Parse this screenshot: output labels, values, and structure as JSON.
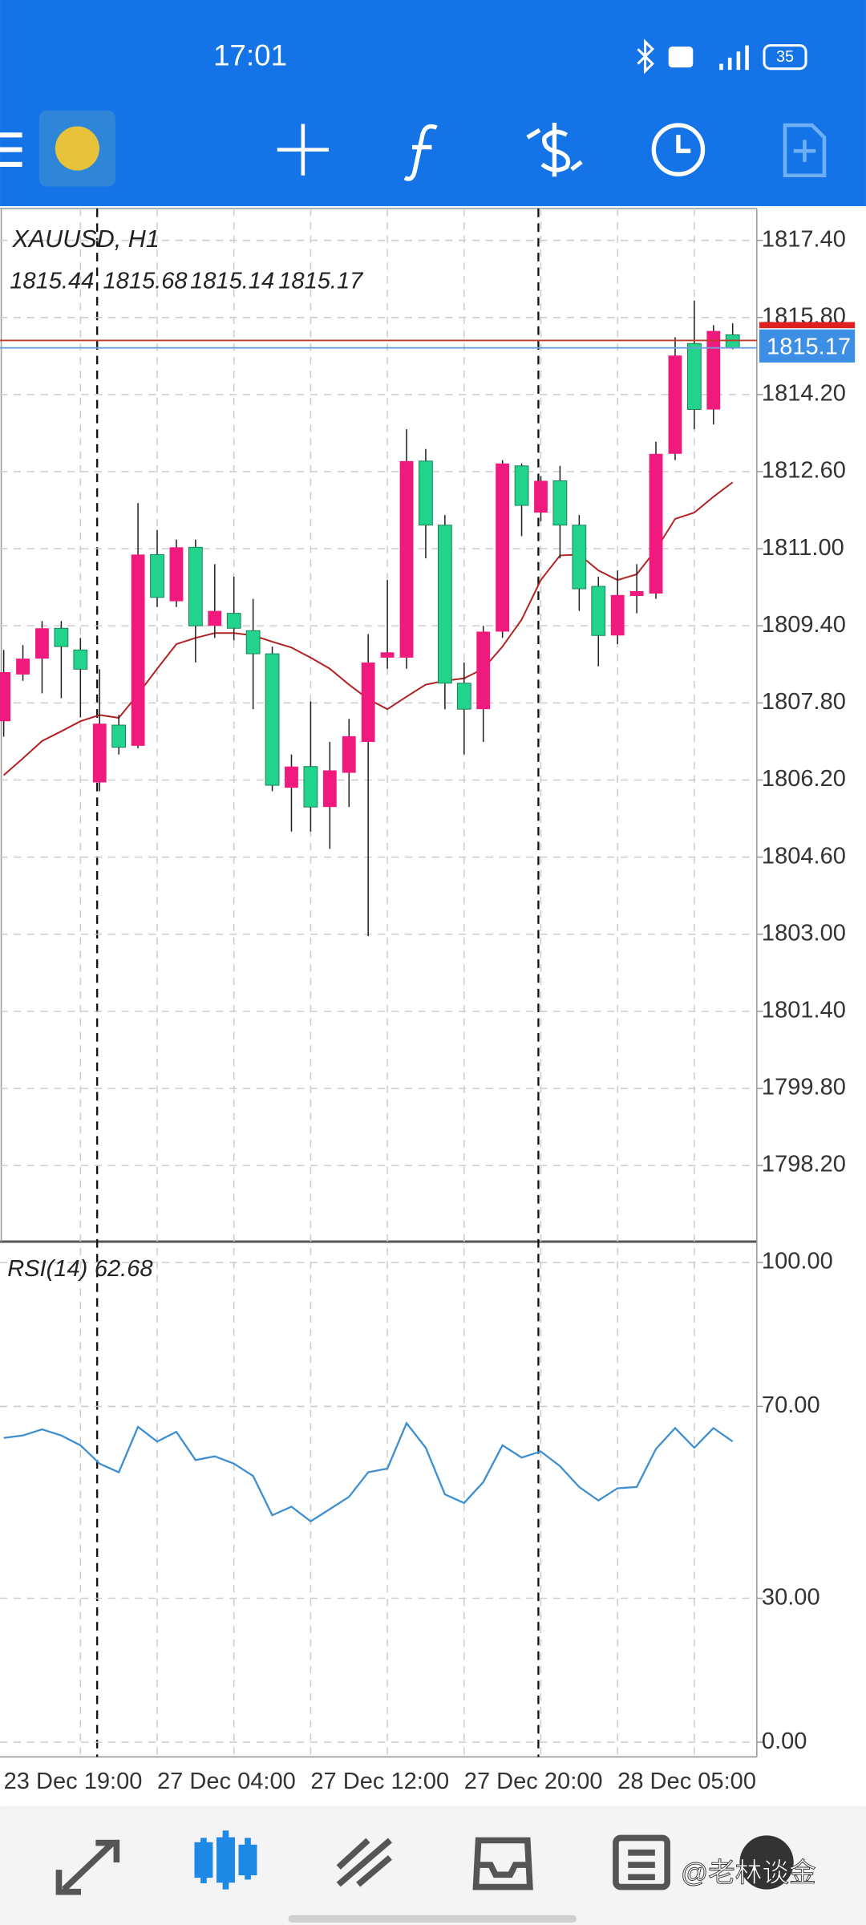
{
  "status_bar": {
    "time": "17:01",
    "battery": "35"
  },
  "chart_data": [
    {
      "type": "candlestick",
      "title": "XAUUSD, H1",
      "categories": [
        "23 Dec 19:00",
        null,
        null,
        null,
        null,
        null,
        null,
        null,
        "27 Dec 04:00",
        null,
        null,
        null,
        null,
        null,
        null,
        null,
        "27 Dec 12:00",
        null,
        null,
        null,
        null,
        null,
        null,
        null,
        "27 Dec 20:00",
        null,
        null,
        null,
        null,
        null,
        null,
        null,
        "28 Dec 05:00",
        null,
        null,
        null,
        null,
        null,
        null
      ],
      "open": [
        1807.42,
        1808.39,
        1808.72,
        1809.35,
        1808.9,
        1806.15,
        1807.34,
        1806.91,
        1810.88,
        1809.91,
        1811.03,
        1809.4,
        1809.66,
        1809.3,
        1808.82,
        1806.04,
        1806.48,
        1805.64,
        1806.35,
        1806.99,
        1808.74,
        1808.74,
        1812.82,
        1811.49,
        1808.21,
        1807.67,
        1809.28,
        1812.72,
        1811.75,
        1812.41,
        1811.49,
        1810.22,
        1809.2,
        1810.02,
        1810.07,
        1812.97,
        1815.26,
        1813.89,
        1815.44
      ],
      "high": [
        1808.9,
        1809.0,
        1809.5,
        1809.5,
        1809.15,
        1808.5,
        1807.55,
        1811.95,
        1811.39,
        1811.19,
        1811.19,
        1810.68,
        1810.42,
        1809.96,
        1808.97,
        1806.73,
        1807.83,
        1806.99,
        1807.47,
        1809.23,
        1810.35,
        1813.48,
        1813.07,
        1811.7,
        1808.64,
        1809.4,
        1812.84,
        1812.77,
        1812.51,
        1812.72,
        1811.7,
        1810.42,
        1810.55,
        1810.68,
        1813.22,
        1815.39,
        1816.15,
        1815.64,
        1815.68
      ],
      "low": [
        1807.1,
        1808.26,
        1808.0,
        1807.9,
        1807.5,
        1805.97,
        1806.73,
        1806.86,
        1809.79,
        1809.79,
        1808.64,
        1809.15,
        1809.1,
        1807.67,
        1805.97,
        1805.13,
        1805.13,
        1804.77,
        1805.64,
        1802.96,
        1808.51,
        1808.51,
        1810.8,
        1807.67,
        1806.73,
        1806.99,
        1809.15,
        1811.26,
        1811.57,
        1810.8,
        1809.71,
        1808.56,
        1809.02,
        1809.66,
        1809.96,
        1812.84,
        1813.48,
        1813.58,
        1815.14
      ],
      "close": [
        1808.44,
        1808.72,
        1809.35,
        1808.97,
        1808.5,
        1807.37,
        1806.88,
        1810.88,
        1809.99,
        1811.03,
        1809.4,
        1809.71,
        1809.35,
        1808.82,
        1806.09,
        1806.48,
        1805.64,
        1806.4,
        1807.11,
        1808.64,
        1808.85,
        1812.82,
        1811.49,
        1808.21,
        1807.67,
        1809.28,
        1812.77,
        1811.9,
        1812.41,
        1811.49,
        1810.17,
        1809.2,
        1810.04,
        1810.12,
        1812.97,
        1815.01,
        1813.89,
        1815.52,
        1815.17
      ],
      "up_color": "#f0197d",
      "down_color": "#22d38b",
      "ma": {
        "color": "#b22222",
        "values": [
          1806.3,
          1806.65,
          1807.01,
          1807.21,
          1807.42,
          1807.55,
          1807.49,
          1807.98,
          1808.51,
          1809.02,
          1809.15,
          1809.25,
          1809.25,
          1809.2,
          1809.07,
          1808.95,
          1808.74,
          1808.51,
          1808.18,
          1807.88,
          1807.67,
          1807.93,
          1808.18,
          1808.26,
          1808.31,
          1808.51,
          1808.97,
          1809.53,
          1810.35,
          1810.86,
          1810.88,
          1810.55,
          1810.35,
          1810.47,
          1810.98,
          1811.62,
          1811.75,
          1812.08,
          1812.38
        ]
      },
      "ylim": [
        1796.62,
        1818.06
      ],
      "yticks": [
        {
          "value": 1817.4,
          "label": "1817.40"
        },
        {
          "value": 1815.8,
          "label": "1815.80"
        },
        {
          "value": 1814.2,
          "label": "1814.20"
        },
        {
          "value": 1812.6,
          "label": "1812.60"
        },
        {
          "value": 1811,
          "label": "1811.00"
        },
        {
          "value": 1809.4,
          "label": "1809.40"
        },
        {
          "value": 1807.8,
          "label": "1807.80"
        },
        {
          "value": 1806.2,
          "label": "1806.20"
        },
        {
          "value": 1804.6,
          "label": "1804.60"
        },
        {
          "value": 1803,
          "label": "1803.00"
        },
        {
          "value": 1801.4,
          "label": "1801.40"
        },
        {
          "value": 1799.8,
          "label": "1799.80"
        },
        {
          "value": 1798.2,
          "label": "1798.20"
        }
      ],
      "grid": true
    },
    {
      "type": "line",
      "title": "RSI(14)",
      "color": "#3d8fd1",
      "values": [
        63.43,
        63.94,
        65.22,
        63.94,
        61.89,
        58.06,
        56.27,
        65.73,
        62.66,
        64.71,
        58.82,
        59.59,
        58.06,
        55.5,
        47.31,
        49.1,
        46.04,
        48.59,
        51.15,
        56.27,
        57.03,
        66.5,
        61.38,
        51.66,
        49.87,
        54.22,
        61.89,
        59.34,
        60.61,
        57.54,
        53.2,
        50.38,
        52.94,
        53.2,
        61.13,
        65.48,
        61.38,
        65.48,
        62.68
      ],
      "ylim": [
        -3.07,
        104.35
      ],
      "yticks": [
        {
          "value": 100,
          "label": "100.00"
        },
        {
          "value": 70,
          "label": "70.00"
        },
        {
          "value": 30,
          "label": "30.00"
        },
        {
          "value": 0,
          "label": "0.00"
        }
      ],
      "grid": true
    }
  ],
  "watermark": "@老林谈金"
}
